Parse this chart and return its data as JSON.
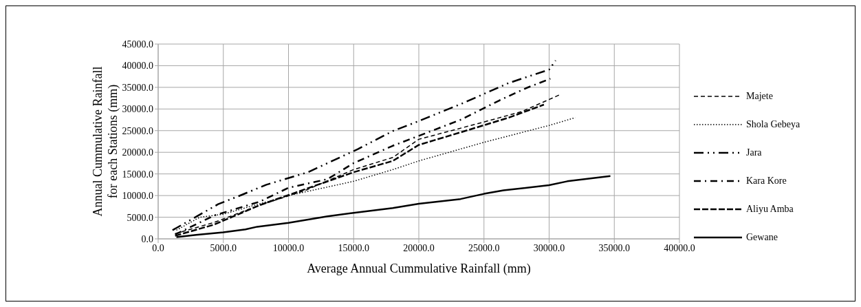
{
  "chart_data": {
    "type": "line",
    "xlabel": "Average Annual Cummulative Rainfall (mm)",
    "ylabel": "Annual Cummulative Rainfall\nfor each Stations (mm)",
    "xlim": [
      0,
      40000
    ],
    "xticks": [
      {
        "value": 0,
        "label": "0.0"
      },
      {
        "value": 5000,
        "label": "5000.0"
      },
      {
        "value": 10000,
        "label": "10000.0"
      },
      {
        "value": 15000,
        "label": "15000.0"
      },
      {
        "value": 20000,
        "label": "20000.0"
      },
      {
        "value": 25000,
        "label": "25000.0"
      },
      {
        "value": 30000,
        "label": "30000.0"
      },
      {
        "value": 35000,
        "label": "35000.0"
      },
      {
        "value": 40000,
        "label": "40000.0"
      }
    ],
    "ylim": [
      0,
      45000
    ],
    "yticks": [
      {
        "value": 0,
        "label": "0.0"
      },
      {
        "value": 5000,
        "label": "5000.0"
      },
      {
        "value": 10000,
        "label": "10000.0"
      },
      {
        "value": 15000,
        "label": "15000.0"
      },
      {
        "value": 20000,
        "label": "20000.0"
      },
      {
        "value": 25000,
        "label": "25000.0"
      },
      {
        "value": 30000,
        "label": "30000.0"
      },
      {
        "value": 35000,
        "label": "35000.0"
      },
      {
        "value": 40000,
        "label": "40000.0"
      },
      {
        "value": 45000,
        "label": "45000.0"
      }
    ],
    "grid": true,
    "legend": "right",
    "marker": "none",
    "series": [
      {
        "name": "Majete",
        "color": "#000000",
        "line_style": "dashed",
        "x": [
          1300,
          4300,
          7800,
          11300,
          15000,
          18000,
          20000,
          25000,
          27900,
          30900
        ],
        "values": [
          1200,
          3800,
          7800,
          11200,
          16000,
          18800,
          23000,
          27000,
          29400,
          33400
        ]
      },
      {
        "name": "Shola Gebeya",
        "color": "#000000",
        "line_style": "dotted",
        "x": [
          1400,
          3200,
          5000,
          10000,
          15000,
          18000,
          20000,
          25000,
          30000,
          32000
        ],
        "values": [
          2000,
          5000,
          5700,
          10000,
          13300,
          16000,
          18000,
          22300,
          26200,
          28000
        ]
      },
      {
        "name": "Jara",
        "color": "#000000",
        "line_style": "dashdotdot",
        "x": [
          1100,
          4600,
          6200,
          8300,
          11500,
          15300,
          18000,
          20000,
          23500,
          26900,
          30000,
          30500
        ],
        "values": [
          2000,
          8000,
          9900,
          12500,
          15400,
          20700,
          24900,
          27200,
          31500,
          36000,
          39100,
          41200
        ]
      },
      {
        "name": "Kara Kore",
        "color": "#000000",
        "line_style": "dashdot",
        "x": [
          1300,
          4300,
          7800,
          10000,
          13000,
          15000,
          18000,
          20000,
          23200,
          26200,
          28300,
          30100
        ],
        "values": [
          1000,
          5400,
          8600,
          11800,
          13800,
          17500,
          21500,
          23800,
          27500,
          32000,
          34900,
          37000
        ]
      },
      {
        "name": "Aliyu Amba",
        "color": "#000000",
        "line_style": "longdash",
        "x": [
          1300,
          4300,
          7800,
          11300,
          15000,
          18000,
          20000,
          23200,
          26900,
          29600
        ],
        "values": [
          700,
          3300,
          7800,
          11500,
          15400,
          18000,
          21700,
          24600,
          28000,
          31000
        ]
      },
      {
        "name": "Gewane",
        "color": "#000000",
        "line_style": "solid",
        "x": [
          1400,
          2900,
          5000,
          6700,
          7600,
          10000,
          13000,
          15000,
          18000,
          20000,
          23200,
          25000,
          26500,
          30000,
          31400,
          34700
        ],
        "values": [
          400,
          900,
          1500,
          2200,
          2800,
          3700,
          5200,
          6000,
          7100,
          8100,
          9200,
          10400,
          11200,
          12400,
          13300,
          14500
        ]
      }
    ]
  }
}
